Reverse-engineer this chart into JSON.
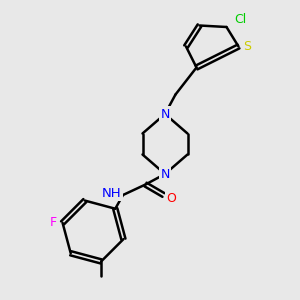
{
  "background_color": "#e8e8e8",
  "atom_colors": {
    "N": "#0000ff",
    "O": "#ff0000",
    "S": "#cccc00",
    "Cl": "#00cc00",
    "F": "#ff00ff",
    "C": "#000000",
    "H": "#000000"
  },
  "bond_color": "#000000",
  "bond_width": 1.8,
  "font_size_atom": 9
}
